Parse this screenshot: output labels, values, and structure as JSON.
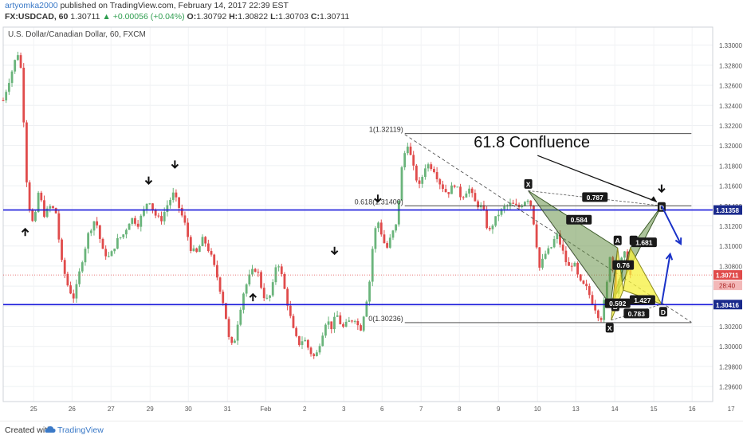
{
  "header": {
    "author": "artyomka2000",
    "published": " published on TradingView.com, February 14, 2017 22:39 EST",
    "symbol": "FX:USDCAD, 60",
    "last": "1.30711",
    "change": "▲ +0.00056 (+0.04%)",
    "o_label": "O:",
    "o": "1.30792",
    "h_label": "H:",
    "h": "1.30822",
    "l_label": "L:",
    "l": "1.30703",
    "c_label": "C:",
    "c": "1.30711"
  },
  "footer": {
    "created": "Created with",
    "brand": "TradingView"
  },
  "colors": {
    "bull": "#6ab47b",
    "bear": "#e04b4b",
    "level_line": "#1a1adb",
    "projection": "#1a32c8",
    "xabcd_fill": "#5c8a3a",
    "abcd_fill": "#f5f03c"
  },
  "chart_data": {
    "type": "candlestick",
    "title": "U.S. Dollar/Canadian Dollar, 60, FXCM",
    "timeframe": "60",
    "ylim": [
      1.2945,
      1.3318
    ],
    "y_ticks": [
      1.33,
      1.328,
      1.326,
      1.324,
      1.322,
      1.32,
      1.318,
      1.316,
      1.314,
      1.312,
      1.31,
      1.308,
      1.306,
      1.304,
      1.302,
      1.3,
      1.298,
      1.296
    ],
    "y_tick_labels": [
      "1.33000",
      "1.32800",
      "1.32600",
      "1.32400",
      "1.32200",
      "1.32000",
      "1.31800",
      "1.31600",
      "1.31400",
      "1.31200",
      "1.31000",
      "1.30800",
      "1.30600",
      "1.30400",
      "1.30200",
      "1.30000",
      "1.29800",
      "1.29600"
    ],
    "x_ticks": [
      {
        "label": "25",
        "t": 0.043
      },
      {
        "label": "26",
        "t": 0.097
      },
      {
        "label": "27",
        "t": 0.152
      },
      {
        "label": "29",
        "t": 0.207
      },
      {
        "label": "30",
        "t": 0.261
      },
      {
        "label": "31",
        "t": 0.316
      },
      {
        "label": "Feb",
        "t": 0.37
      },
      {
        "label": "2",
        "t": 0.425
      },
      {
        "label": "3",
        "t": 0.48
      },
      {
        "label": "6",
        "t": 0.534
      },
      {
        "label": "7",
        "t": 0.589
      },
      {
        "label": "8",
        "t": 0.643
      },
      {
        "label": "9",
        "t": 0.698
      },
      {
        "label": "10",
        "t": 0.753
      },
      {
        "label": "13",
        "t": 0.807
      },
      {
        "label": "14",
        "t": 0.862
      },
      {
        "label": "15",
        "t": 0.917
      },
      {
        "label": "16",
        "t": 0.971
      },
      {
        "label": "17",
        "t": 1.026
      }
    ],
    "price_path": [
      [
        0.0,
        1.3245
      ],
      [
        0.007,
        1.3262
      ],
      [
        0.014,
        1.3278
      ],
      [
        0.02,
        1.3293
      ],
      [
        0.024,
        1.3285
      ],
      [
        0.028,
        1.3245
      ],
      [
        0.031,
        1.3182
      ],
      [
        0.036,
        1.3142
      ],
      [
        0.043,
        1.3118
      ],
      [
        0.05,
        1.3155
      ],
      [
        0.058,
        1.3131
      ],
      [
        0.066,
        1.3139
      ],
      [
        0.074,
        1.3135
      ],
      [
        0.082,
        1.3085
      ],
      [
        0.092,
        1.3058
      ],
      [
        0.1,
        1.3048
      ],
      [
        0.11,
        1.3082
      ],
      [
        0.12,
        1.3112
      ],
      [
        0.13,
        1.3128
      ],
      [
        0.14,
        1.3095
      ],
      [
        0.15,
        1.3088
      ],
      [
        0.16,
        1.3105
      ],
      [
        0.17,
        1.3112
      ],
      [
        0.18,
        1.3128
      ],
      [
        0.19,
        1.3122
      ],
      [
        0.2,
        1.3138
      ],
      [
        0.205,
        1.3148
      ],
      [
        0.213,
        1.3132
      ],
      [
        0.222,
        1.3125
      ],
      [
        0.232,
        1.3142
      ],
      [
        0.24,
        1.3152
      ],
      [
        0.248,
        1.3138
      ],
      [
        0.256,
        1.3122
      ],
      [
        0.264,
        1.3098
      ],
      [
        0.272,
        1.3092
      ],
      [
        0.282,
        1.3108
      ],
      [
        0.292,
        1.3092
      ],
      [
        0.302,
        1.3068
      ],
      [
        0.312,
        1.3038
      ],
      [
        0.318,
        1.3008
      ],
      [
        0.324,
        1.2998
      ],
      [
        0.33,
        1.3022
      ],
      [
        0.338,
        1.3052
      ],
      [
        0.346,
        1.3068
      ],
      [
        0.354,
        1.3078
      ],
      [
        0.36,
        1.3072
      ],
      [
        0.364,
        1.3058
      ],
      [
        0.37,
        1.3045
      ],
      [
        0.378,
        1.3052
      ],
      [
        0.386,
        1.3088
      ],
      [
        0.392,
        1.3072
      ],
      [
        0.4,
        1.3045
      ],
      [
        0.408,
        1.3018
      ],
      [
        0.416,
        1.3002
      ],
      [
        0.424,
        1.3008
      ],
      [
        0.432,
        1.2995
      ],
      [
        0.44,
        1.2988
      ],
      [
        0.448,
        1.3008
      ],
      [
        0.456,
        1.3028
      ],
      [
        0.462,
        1.3018
      ],
      [
        0.47,
        1.3032
      ],
      [
        0.478,
        1.3018
      ],
      [
        0.488,
        1.3025
      ],
      [
        0.496,
        1.3028
      ],
      [
        0.503,
        1.3015
      ],
      [
        0.51,
        1.3038
      ],
      [
        0.516,
        1.3062
      ],
      [
        0.52,
        1.3095
      ],
      [
        0.527,
        1.3128
      ],
      [
        0.532,
        1.3115
      ],
      [
        0.54,
        1.3096
      ],
      [
        0.548,
        1.3112
      ],
      [
        0.555,
        1.3122
      ],
      [
        0.56,
        1.3168
      ],
      [
        0.564,
        1.3188
      ],
      [
        0.57,
        1.3202
      ],
      [
        0.578,
        1.3178
      ],
      [
        0.586,
        1.3158
      ],
      [
        0.596,
        1.3182
      ],
      [
        0.606,
        1.3178
      ],
      [
        0.616,
        1.3162
      ],
      [
        0.626,
        1.3152
      ],
      [
        0.636,
        1.3162
      ],
      [
        0.646,
        1.3148
      ],
      [
        0.656,
        1.3158
      ],
      [
        0.666,
        1.3142
      ],
      [
        0.676,
        1.3138
      ],
      [
        0.684,
        1.3112
      ],
      [
        0.69,
        1.3122
      ],
      [
        0.698,
        1.3132
      ],
      [
        0.706,
        1.3138
      ],
      [
        0.716,
        1.3142
      ],
      [
        0.726,
        1.3138
      ],
      [
        0.736,
        1.3146
      ],
      [
        0.742,
        1.3148
      ],
      [
        0.748,
        1.3122
      ],
      [
        0.756,
        1.3078
      ],
      [
        0.764,
        1.3092
      ],
      [
        0.772,
        1.3098
      ],
      [
        0.78,
        1.3112
      ],
      [
        0.788,
        1.3096
      ],
      [
        0.796,
        1.3078
      ],
      [
        0.804,
        1.3084
      ],
      [
        0.812,
        1.3064
      ],
      [
        0.822,
        1.3058
      ],
      [
        0.832,
        1.3042
      ],
      [
        0.838,
        1.3032
      ],
      [
        0.842,
        1.3026
      ],
      [
        0.848,
        1.3048
      ],
      [
        0.852,
        1.3068
      ],
      [
        0.856,
        1.3098
      ],
      [
        0.86,
        1.3072
      ],
      [
        0.864,
        1.3052
      ],
      [
        0.868,
        1.3068
      ],
      [
        0.872,
        1.3088
      ],
      [
        0.876,
        1.3092
      ],
      [
        0.88,
        1.3078
      ],
      [
        0.884,
        1.3071
      ]
    ],
    "last_price": 1.30711,
    "last_price_label": "1.30711",
    "countdown": "28:40",
    "horizontal_levels": [
      {
        "price": 1.31358,
        "label": "1.31358",
        "color": "#1a1adb"
      },
      {
        "price": 1.30416,
        "label": "1.30416",
        "color": "#1a1adb"
      }
    ],
    "fib": {
      "levels": [
        {
          "price": 1.32119,
          "label": "1(1.32119)"
        },
        {
          "price": 1.314,
          "label": "0.618(1.31400)"
        },
        {
          "price": 1.30236,
          "label": "0(1.30236)"
        }
      ],
      "t_start": 0.566,
      "t_end": 0.97
    },
    "trendline": {
      "from": [
        0.566,
        1.3211
      ],
      "to": [
        0.97,
        1.3024
      ]
    },
    "pattern_xabcd": {
      "points": {
        "X": [
          0.74,
          1.3155
        ],
        "A": [
          0.866,
          1.3098
        ],
        "B": [
          0.856,
          1.3041
        ],
        "C": [
          0.884,
          1.3098
        ],
        "D": [
          0.928,
          1.314
        ]
      },
      "x2": [
        0.857,
        1.3026
      ],
      "b2": [
        0.874,
        1.3056
      ],
      "d2": [
        0.928,
        1.3042
      ],
      "ratios": {
        "xb": "0.584",
        "xd": "0.787",
        "ac": "0.76",
        "bd": "1.681"
      },
      "abcd_ratios": {
        "ac": "0.592",
        "bd": "1.427",
        "xd": "0.783"
      }
    },
    "labels": {
      "X": "X",
      "A": "A",
      "B": "B",
      "C": "C",
      "D": "D"
    },
    "annotation": {
      "text": "61.8 Confluence",
      "price": 1.3198,
      "t": 0.77
    },
    "arrows_down": [
      [
        0.205,
        1.3162
      ],
      [
        0.242,
        1.3178
      ],
      [
        0.528,
        1.3144
      ],
      [
        0.467,
        1.3092
      ],
      [
        0.928,
        1.3154
      ]
    ],
    "arrows_up": [
      [
        0.031,
        1.3117
      ],
      [
        0.352,
        1.3052
      ]
    ],
    "projections": [
      {
        "from": [
          0.928,
          1.314
        ],
        "to": [
          0.955,
          1.3102
        ]
      },
      {
        "from": [
          0.928,
          1.3042
        ],
        "to": [
          0.94,
          1.3092
        ]
      }
    ]
  }
}
